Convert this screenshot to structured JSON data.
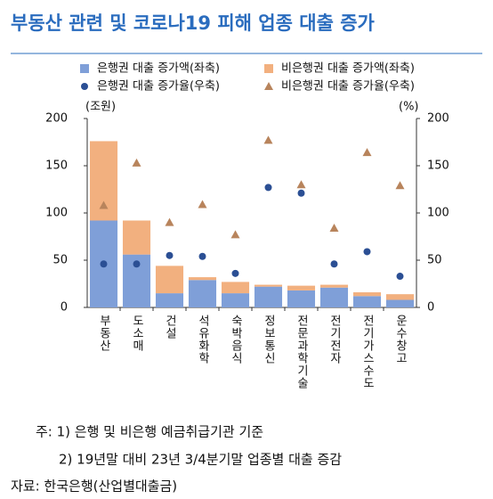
{
  "chart_data": {
    "type": "combo",
    "title": "부동산 관련 및 코로나19 피해 업종 대출 증가",
    "ylabel": "(조원)",
    "y2label": "(%)",
    "categories": [
      "부동산",
      "도소매",
      "건설",
      "석유화학",
      "숙박음식",
      "정보통신",
      "전문과학기술",
      "전기전자",
      "전기가스수도",
      "운수창고"
    ],
    "series": [
      {
        "name": "은행권 대출 증가액(좌축)",
        "type": "bar",
        "color": "#7f9fd8",
        "values": [
          92,
          56,
          15,
          29,
          15,
          22,
          18,
          21,
          12,
          8
        ]
      },
      {
        "name": "비은행권 대출 증가액(좌축)",
        "type": "bar",
        "color": "#f2b07f",
        "values": [
          84,
          36,
          29,
          3,
          12,
          2,
          5,
          3,
          4,
          6
        ]
      },
      {
        "name": "은행권 대출 증가율(우축)",
        "type": "scatter",
        "marker": "circle",
        "axis": "y2",
        "color": "#2b4f94",
        "values": [
          46,
          46,
          55,
          54,
          36,
          127,
          121,
          46,
          59,
          33
        ]
      },
      {
        "name": "비은행권 대출 증가율(우축)",
        "type": "scatter",
        "marker": "triangle",
        "axis": "y2",
        "color": "#b8845c",
        "values": [
          108,
          153,
          90,
          109,
          77,
          177,
          130,
          84,
          164,
          129
        ]
      }
    ],
    "ylim": [
      0,
      200
    ],
    "yticks": [
      0,
      50,
      100,
      150,
      200
    ],
    "y2lim": [
      0,
      200
    ],
    "y2ticks": [
      0,
      50,
      100,
      150,
      200
    ],
    "notes": [
      "주: 1) 은행 및 비은행 예금취급기관 기준",
      "2) 19년말 대비 23년 3/4분기말 업종별 대출 증감"
    ],
    "source": "자료: 한국은행(산업별대출금)"
  }
}
